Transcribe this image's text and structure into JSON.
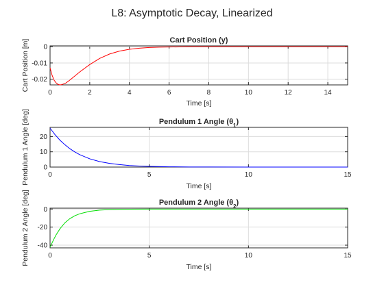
{
  "figure_title": "L8: Asymptotic Decay, Linearized",
  "chart_data": [
    {
      "type": "line",
      "title": "Cart Position (y)",
      "xlabel": "Time [s]",
      "ylabel": "Cart Position [m]",
      "xlim": [
        0,
        15
      ],
      "ylim": [
        -0.0235,
        0.0005
      ],
      "xticks": [
        0,
        2,
        4,
        6,
        8,
        10,
        12,
        14
      ],
      "xtick_labels": [
        "0",
        "2",
        "4",
        "6",
        "8",
        "10",
        "12",
        "14"
      ],
      "yticks": [
        0,
        -0.01,
        -0.02
      ],
      "ytick_labels": [
        "0",
        "-0.01",
        "-0.02"
      ],
      "grid": true,
      "color": "#ff0000",
      "series": [
        {
          "x": [
            0,
            0.1,
            0.2,
            0.3,
            0.4,
            0.5,
            0.6,
            0.8,
            1.0,
            1.2,
            1.5,
            2.0,
            2.5,
            3.0,
            3.5,
            4.0,
            4.5,
            5.0,
            5.5,
            6.0,
            7.0,
            8.0,
            10.0,
            12.0,
            15.0
          ],
          "y": [
            -0.013,
            -0.0175,
            -0.0205,
            -0.0222,
            -0.0232,
            -0.0235,
            -0.0233,
            -0.0223,
            -0.0205,
            -0.0185,
            -0.0155,
            -0.011,
            -0.0072,
            -0.0045,
            -0.0027,
            -0.0016,
            -0.0009,
            -0.0005,
            -0.0003,
            -0.0002,
            -5e-05,
            -1e-05,
            0,
            0,
            0
          ]
        }
      ]
    },
    {
      "type": "line",
      "title": "Pendulum 1 Angle (θ",
      "title_sub": "1",
      "title_end": ")",
      "xlabel": "Time [s]",
      "ylabel": "Pendulum 1 Angle [deg]",
      "xlim": [
        0,
        15
      ],
      "ylim": [
        0,
        26
      ],
      "xticks": [
        0,
        5,
        10,
        15
      ],
      "xtick_labels": [
        "0",
        "5",
        "10",
        "15"
      ],
      "yticks": [
        0,
        10,
        20
      ],
      "ytick_labels": [
        "0",
        "10",
        "20"
      ],
      "grid": true,
      "color": "#0000ff",
      "series": [
        {
          "x": [
            0,
            0.25,
            0.5,
            0.75,
            1.0,
            1.25,
            1.5,
            2.0,
            2.5,
            3.0,
            3.5,
            4.0,
            4.5,
            5.0,
            6.0,
            7.0,
            8.0,
            10.0,
            12.0,
            15.0
          ],
          "y": [
            25.5,
            21.2,
            17.6,
            14.6,
            12.0,
            9.9,
            8.1,
            5.4,
            3.6,
            2.4,
            1.6,
            1.0,
            0.65,
            0.42,
            0.17,
            0.07,
            0.03,
            0,
            0,
            0
          ]
        }
      ]
    },
    {
      "type": "line",
      "title": "Pendulum 2 Angle (θ",
      "title_sub": "2",
      "title_end": ")",
      "xlabel": "Time [s]",
      "ylabel": "Pendulum 2 Angle [deg]",
      "xlim": [
        0,
        15
      ],
      "ylim": [
        -43,
        1
      ],
      "xticks": [
        0,
        5,
        10,
        15
      ],
      "xtick_labels": [
        "0",
        "5",
        "10",
        "15"
      ],
      "yticks": [
        0,
        -20,
        -40
      ],
      "ytick_labels": [
        "0",
        "-20",
        "-40"
      ],
      "grid": true,
      "color": "#00dd00",
      "series": [
        {
          "x": [
            0,
            0.05,
            0.1,
            0.2,
            0.3,
            0.5,
            0.75,
            1.0,
            1.25,
            1.5,
            2.0,
            2.5,
            3.0,
            3.5,
            4.0,
            5.0,
            6.0,
            8.0,
            10.0,
            15.0
          ],
          "y": [
            -42,
            -40,
            -37.5,
            -33,
            -28.8,
            -21.8,
            -15.2,
            -10.6,
            -7.4,
            -5.2,
            -2.5,
            -1.2,
            -0.6,
            -0.3,
            -0.15,
            -0.04,
            -0.01,
            0,
            0,
            0
          ]
        }
      ]
    }
  ]
}
